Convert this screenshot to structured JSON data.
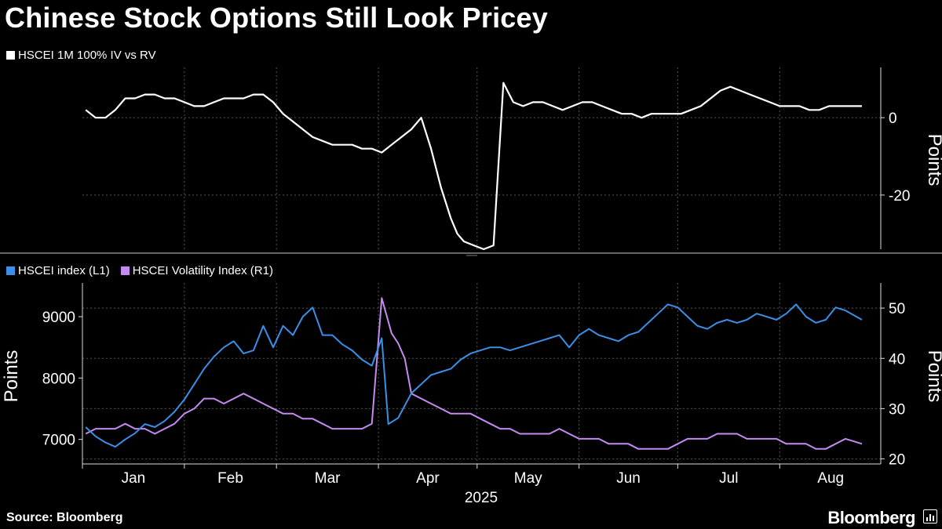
{
  "title": "Chinese Stock Options Still Look Pricey",
  "source": "Source: Bloomberg",
  "brand": "Bloomberg",
  "colors": {
    "iv_rv": "#ffffff",
    "hscei": "#3b8fe6",
    "vhsi": "#c58af2",
    "grid": "#555555",
    "background": "#000000"
  },
  "x_axis": {
    "months": [
      "Jan",
      "Feb",
      "Mar",
      "Apr",
      "May",
      "Jun",
      "Jul",
      "Aug"
    ],
    "year": "2025"
  },
  "chart_data": [
    {
      "type": "line",
      "ylabel": "Points",
      "ylim": [
        -34,
        13
      ],
      "yticks": [
        0,
        -20
      ],
      "grid": true,
      "legend": "top-left",
      "series": [
        {
          "name": "HSCEI 1M 100% IV vs RV",
          "x": [
            "2025-01-02",
            "2025-01-05",
            "2025-01-08",
            "2025-01-11",
            "2025-01-14",
            "2025-01-17",
            "2025-01-20",
            "2025-01-23",
            "2025-01-26",
            "2025-01-29",
            "2025-02-01",
            "2025-02-04",
            "2025-02-07",
            "2025-02-10",
            "2025-02-13",
            "2025-02-16",
            "2025-02-19",
            "2025-02-22",
            "2025-02-25",
            "2025-02-28",
            "2025-03-03",
            "2025-03-06",
            "2025-03-09",
            "2025-03-12",
            "2025-03-15",
            "2025-03-18",
            "2025-03-21",
            "2025-03-24",
            "2025-03-27",
            "2025-03-30",
            "2025-04-02",
            "2025-04-05",
            "2025-04-08",
            "2025-04-11",
            "2025-04-14",
            "2025-04-17",
            "2025-04-20",
            "2025-04-23",
            "2025-04-25",
            "2025-04-27",
            "2025-04-30",
            "2025-05-03",
            "2025-05-06",
            "2025-05-09",
            "2025-05-12",
            "2025-05-15",
            "2025-05-18",
            "2025-05-21",
            "2025-05-24",
            "2025-05-27",
            "2025-05-30",
            "2025-06-02",
            "2025-06-05",
            "2025-06-08",
            "2025-06-11",
            "2025-06-14",
            "2025-06-17",
            "2025-06-20",
            "2025-06-23",
            "2025-06-26",
            "2025-06-29",
            "2025-07-02",
            "2025-07-05",
            "2025-07-08",
            "2025-07-11",
            "2025-07-14",
            "2025-07-17",
            "2025-07-20",
            "2025-07-23",
            "2025-07-26",
            "2025-07-29",
            "2025-08-01",
            "2025-08-04",
            "2025-08-07",
            "2025-08-10",
            "2025-08-13",
            "2025-08-16",
            "2025-08-19",
            "2025-08-22",
            "2025-08-26"
          ],
          "values": [
            2,
            0,
            0,
            2,
            5,
            5,
            6,
            6,
            5,
            5,
            4,
            3,
            3,
            4,
            5,
            5,
            5,
            6,
            6,
            4,
            1,
            -1,
            -3,
            -5,
            -6,
            -7,
            -7,
            -7,
            -8,
            -8,
            -9,
            -7,
            -5,
            -3,
            0,
            -8,
            -18,
            -26,
            -30,
            -32,
            -33,
            -34,
            -33,
            9,
            4,
            3,
            4,
            4,
            3,
            2,
            3,
            4,
            4,
            3,
            2,
            1,
            1,
            0,
            1,
            1,
            1,
            1,
            2,
            3,
            5,
            7,
            8,
            7,
            6,
            5,
            4,
            3,
            3,
            3,
            2,
            2,
            3,
            3,
            3,
            3
          ]
        }
      ]
    },
    {
      "type": "line",
      "ylabel_left": "Points",
      "ylabel_right": "Points",
      "ylim_left": [
        6600,
        9550
      ],
      "yticks_left": [
        7000,
        8000,
        9000
      ],
      "ylim_right": [
        19,
        55
      ],
      "yticks_right": [
        20,
        30,
        40,
        50
      ],
      "grid": true,
      "legend": "top-left",
      "series": [
        {
          "name": "HSCEI index (L1)",
          "axis": "left",
          "x": [
            "2025-01-02",
            "2025-01-05",
            "2025-01-08",
            "2025-01-11",
            "2025-01-14",
            "2025-01-17",
            "2025-01-20",
            "2025-01-23",
            "2025-01-26",
            "2025-01-29",
            "2025-02-01",
            "2025-02-04",
            "2025-02-07",
            "2025-02-10",
            "2025-02-13",
            "2025-02-16",
            "2025-02-19",
            "2025-02-22",
            "2025-02-25",
            "2025-02-28",
            "2025-03-03",
            "2025-03-06",
            "2025-03-09",
            "2025-03-12",
            "2025-03-15",
            "2025-03-18",
            "2025-03-21",
            "2025-03-24",
            "2025-03-27",
            "2025-03-30",
            "2025-04-02",
            "2025-04-04",
            "2025-04-07",
            "2025-04-09",
            "2025-04-11",
            "2025-04-14",
            "2025-04-17",
            "2025-04-20",
            "2025-04-23",
            "2025-04-26",
            "2025-04-29",
            "2025-05-02",
            "2025-05-05",
            "2025-05-08",
            "2025-05-11",
            "2025-05-14",
            "2025-05-17",
            "2025-05-20",
            "2025-05-23",
            "2025-05-26",
            "2025-05-29",
            "2025-06-01",
            "2025-06-04",
            "2025-06-07",
            "2025-06-10",
            "2025-06-13",
            "2025-06-16",
            "2025-06-19",
            "2025-06-22",
            "2025-06-25",
            "2025-06-28",
            "2025-07-01",
            "2025-07-04",
            "2025-07-07",
            "2025-07-10",
            "2025-07-13",
            "2025-07-16",
            "2025-07-19",
            "2025-07-22",
            "2025-07-25",
            "2025-07-28",
            "2025-07-31",
            "2025-08-03",
            "2025-08-06",
            "2025-08-09",
            "2025-08-12",
            "2025-08-15",
            "2025-08-18",
            "2025-08-21",
            "2025-08-26"
          ],
          "values": [
            7200,
            7050,
            6950,
            6880,
            7000,
            7100,
            7250,
            7200,
            7300,
            7450,
            7650,
            7900,
            8150,
            8350,
            8500,
            8600,
            8400,
            8450,
            8850,
            8500,
            8850,
            8700,
            9000,
            9150,
            8700,
            8700,
            8550,
            8450,
            8300,
            8200,
            8650,
            7250,
            7350,
            7550,
            7750,
            7900,
            8050,
            8100,
            8150,
            8300,
            8400,
            8450,
            8500,
            8500,
            8450,
            8500,
            8550,
            8600,
            8650,
            8700,
            8500,
            8700,
            8800,
            8700,
            8650,
            8600,
            8700,
            8750,
            8900,
            9050,
            9200,
            9150,
            9000,
            8850,
            8800,
            8900,
            8950,
            8900,
            8950,
            9050,
            9000,
            8950,
            9050,
            9200,
            9000,
            8900,
            8950,
            9150,
            9100,
            8950
          ]
        },
        {
          "name": "HSCEI Volatility Index  (R1)",
          "axis": "right",
          "x": [
            "2025-01-02",
            "2025-01-05",
            "2025-01-08",
            "2025-01-11",
            "2025-01-14",
            "2025-01-17",
            "2025-01-20",
            "2025-01-23",
            "2025-01-26",
            "2025-01-29",
            "2025-02-01",
            "2025-02-04",
            "2025-02-07",
            "2025-02-10",
            "2025-02-13",
            "2025-02-16",
            "2025-02-19",
            "2025-02-22",
            "2025-02-25",
            "2025-02-28",
            "2025-03-03",
            "2025-03-06",
            "2025-03-09",
            "2025-03-12",
            "2025-03-15",
            "2025-03-18",
            "2025-03-21",
            "2025-03-24",
            "2025-03-27",
            "2025-03-30",
            "2025-04-02",
            "2025-04-05",
            "2025-04-07",
            "2025-04-09",
            "2025-04-11",
            "2025-04-14",
            "2025-04-17",
            "2025-04-20",
            "2025-04-23",
            "2025-04-26",
            "2025-04-29",
            "2025-05-02",
            "2025-05-05",
            "2025-05-08",
            "2025-05-11",
            "2025-05-14",
            "2025-05-17",
            "2025-05-20",
            "2025-05-23",
            "2025-05-26",
            "2025-05-29",
            "2025-06-01",
            "2025-06-04",
            "2025-06-07",
            "2025-06-10",
            "2025-06-13",
            "2025-06-16",
            "2025-06-19",
            "2025-06-22",
            "2025-06-25",
            "2025-06-28",
            "2025-07-01",
            "2025-07-04",
            "2025-07-07",
            "2025-07-10",
            "2025-07-13",
            "2025-07-16",
            "2025-07-19",
            "2025-07-22",
            "2025-07-25",
            "2025-07-28",
            "2025-07-31",
            "2025-08-03",
            "2025-08-06",
            "2025-08-09",
            "2025-08-12",
            "2025-08-15",
            "2025-08-18",
            "2025-08-21",
            "2025-08-26"
          ],
          "values": [
            25,
            26,
            26,
            26,
            27,
            26,
            26,
            25,
            26,
            27,
            29,
            30,
            32,
            32,
            31,
            32,
            33,
            32,
            31,
            30,
            29,
            29,
            28,
            28,
            27,
            26,
            26,
            26,
            26,
            27,
            52,
            45,
            43,
            40,
            33,
            32,
            31,
            30,
            29,
            29,
            29,
            28,
            27,
            26,
            26,
            25,
            25,
            25,
            25,
            26,
            25,
            24,
            24,
            24,
            23,
            23,
            23,
            22,
            22,
            22,
            22,
            23,
            24,
            24,
            24,
            25,
            25,
            25,
            24,
            24,
            24,
            24,
            23,
            23,
            23,
            22,
            22,
            23,
            24,
            23
          ]
        }
      ]
    }
  ]
}
